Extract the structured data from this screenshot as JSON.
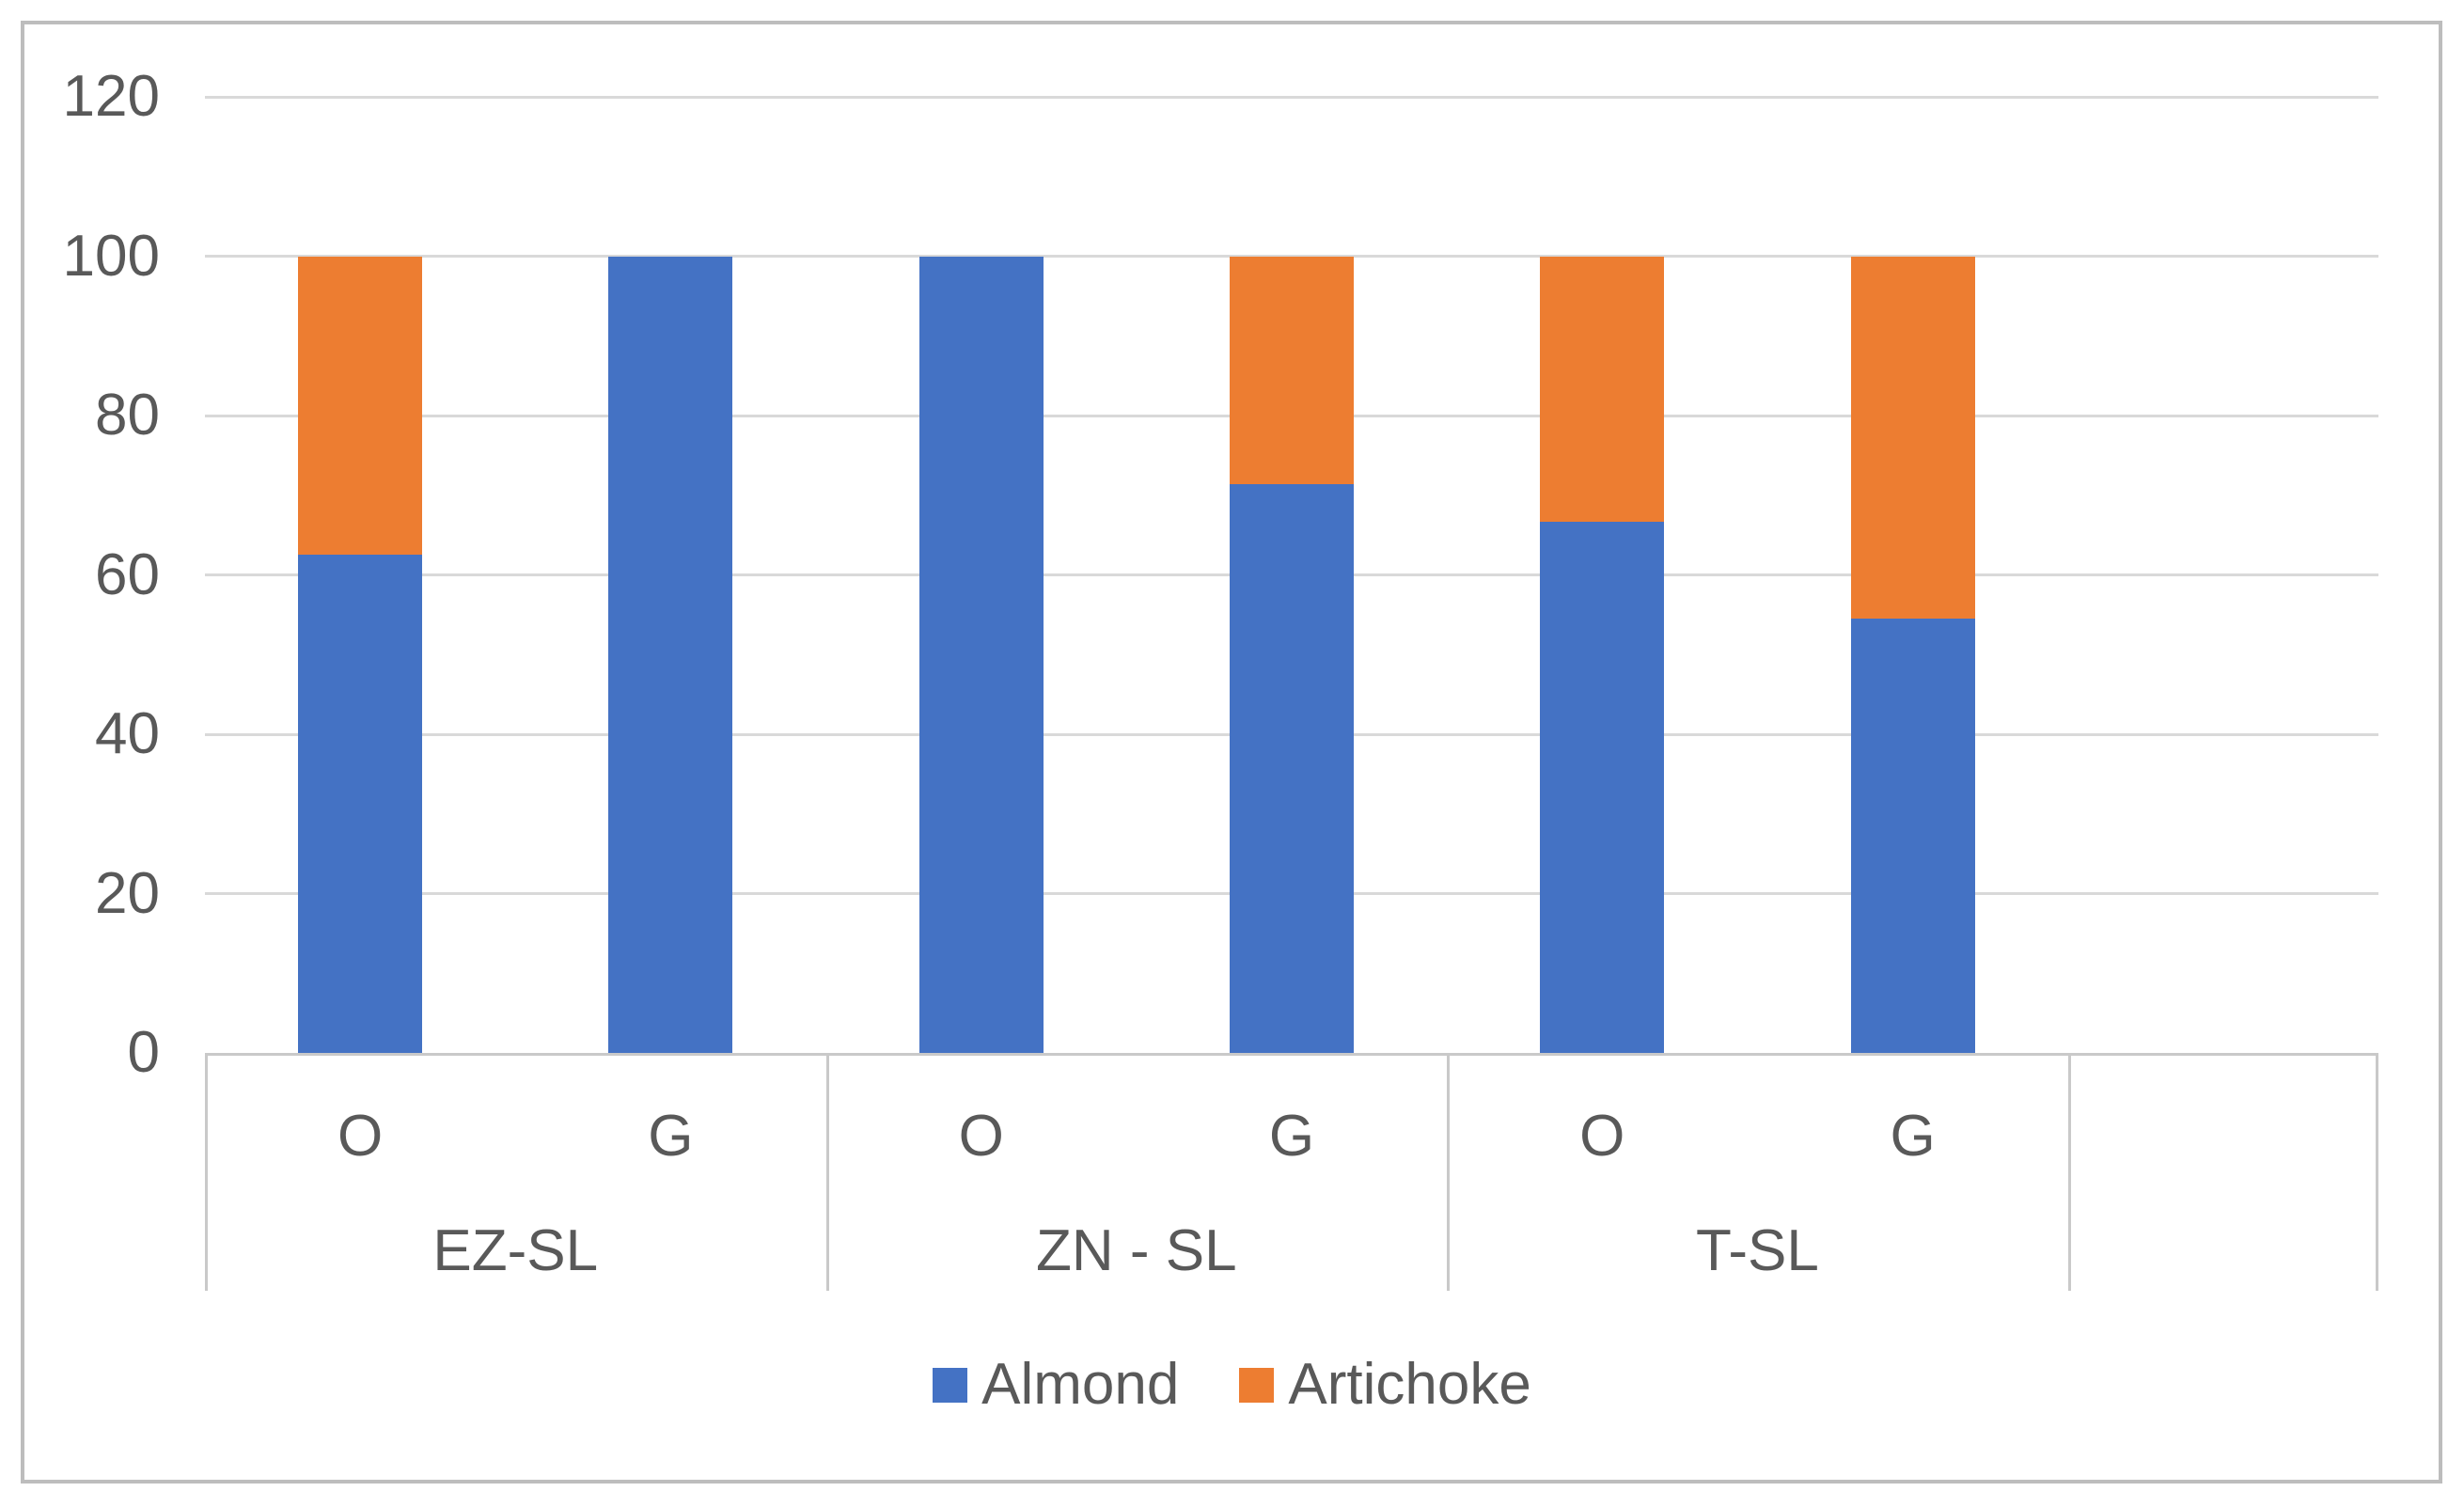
{
  "chart_data": {
    "type": "bar",
    "subtype": "stacked-column",
    "x_axis": {
      "groups": [
        {
          "label": "EZ-SL",
          "sub": [
            "O",
            "G"
          ]
        },
        {
          "label": "ZN - SL",
          "sub": [
            "O",
            "G"
          ]
        },
        {
          "label": "T-SL",
          "sub": [
            "O",
            "G"
          ]
        }
      ],
      "empty_trailing_slots": 1
    },
    "y_axis": {
      "min": 0,
      "max": 120,
      "tick_step": 20,
      "ticks": [
        120,
        100,
        80,
        60,
        40,
        20,
        0
      ]
    },
    "series": [
      {
        "name": "Almond",
        "color": "#4472C4",
        "values": [
          62.5,
          100,
          100,
          71.4,
          66.7,
          54.5
        ]
      },
      {
        "name": "Artichoke",
        "color": "#ED7D31",
        "values": [
          37.5,
          0,
          0,
          28.6,
          33.3,
          45.5
        ]
      }
    ],
    "legend": {
      "position": "bottom",
      "entries": [
        "Almond",
        "Artichoke"
      ]
    },
    "grid": true,
    "plot_background": "#FFFFFF"
  },
  "style": {
    "text_color": "#595959",
    "gridline_color": "#D9D9D9",
    "axis_line_color": "#C9C9C9",
    "frame_border_color": "#BDBDBD",
    "background": "#FFFFFF"
  }
}
